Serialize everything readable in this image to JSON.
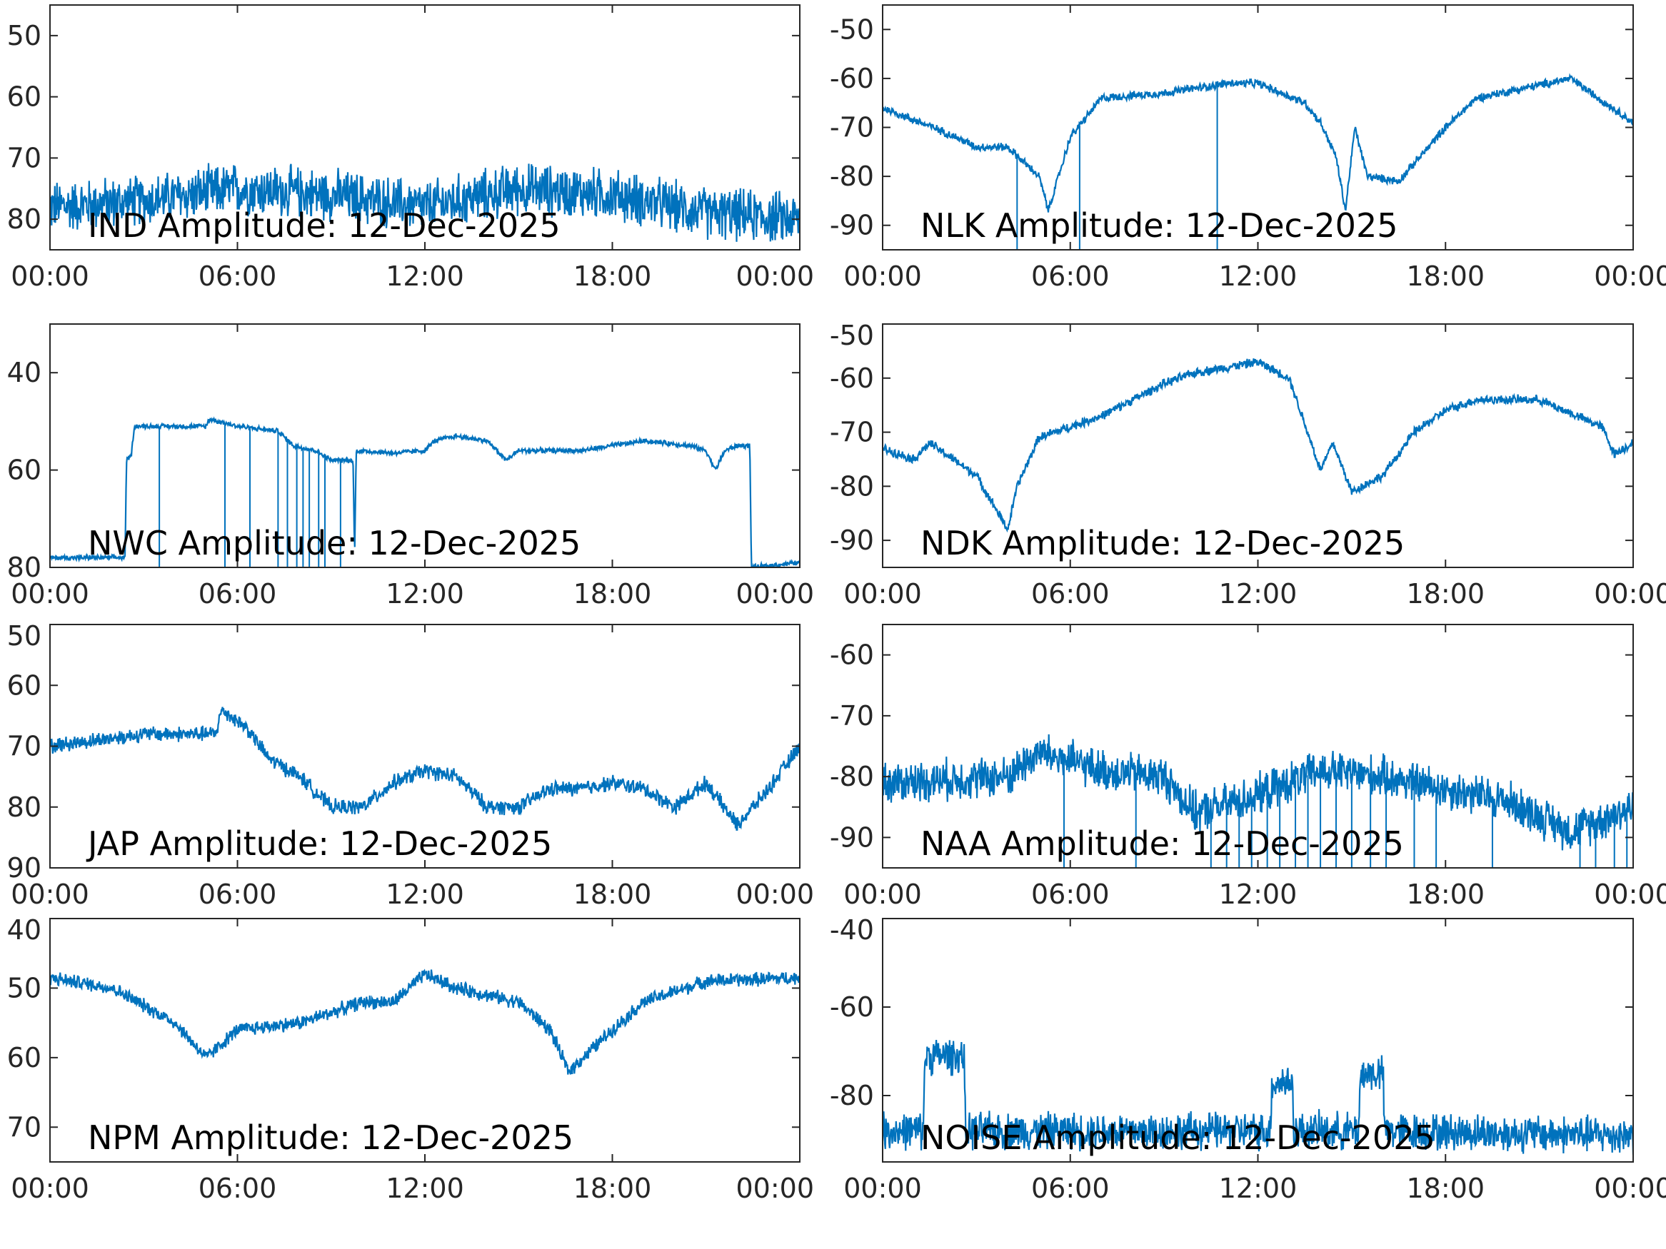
{
  "line_color": "#0072BD",
  "axis_color": "#262626",
  "chart_data": [
    {
      "type": "line",
      "station": "IND",
      "annotation": "IND Amplitude: 12-Dec-2025",
      "ylim": [
        -85,
        -45
      ],
      "yticks": [
        -50,
        -60,
        -70,
        -80
      ],
      "ytick_labels": [
        "50",
        "60",
        "70",
        "80"
      ],
      "xticks": [
        0,
        6,
        12,
        18,
        24
      ],
      "xtick_labels": [
        "00:00",
        "06:00",
        "12:00",
        "18:00",
        "00:00"
      ],
      "noise": 5,
      "points": [
        [
          0,
          -78
        ],
        [
          3,
          -77
        ],
        [
          6,
          -75
        ],
        [
          9,
          -76
        ],
        [
          12,
          -78
        ],
        [
          15,
          -75
        ],
        [
          18,
          -76
        ],
        [
          21,
          -79
        ],
        [
          24,
          -80
        ]
      ],
      "dropouts": []
    },
    {
      "type": "line",
      "station": "NLK",
      "annotation": "NLK Amplitude: 12-Dec-2025",
      "ylim": [
        -95,
        -45
      ],
      "yticks": [
        -50,
        -60,
        -70,
        -80,
        -90
      ],
      "ytick_labels": [
        "-50",
        "-60",
        "-70",
        "-80",
        "-90"
      ],
      "xticks": [
        0,
        6,
        12,
        18,
        24
      ],
      "xtick_labels": [
        "00:00",
        "06:00",
        "12:00",
        "18:00",
        "00:00"
      ],
      "noise": 1,
      "points": [
        [
          0,
          -66
        ],
        [
          2,
          -71
        ],
        [
          3,
          -74
        ],
        [
          4,
          -74
        ],
        [
          5,
          -80
        ],
        [
          5.3,
          -87
        ],
        [
          6,
          -72
        ],
        [
          7,
          -64
        ],
        [
          9,
          -63
        ],
        [
          11,
          -61
        ],
        [
          12,
          -61
        ],
        [
          13.5,
          -65
        ],
        [
          14,
          -69
        ],
        [
          14.5,
          -76
        ],
        [
          14.8,
          -87
        ],
        [
          15.1,
          -70
        ],
        [
          15.5,
          -80
        ],
        [
          16.5,
          -81
        ],
        [
          18,
          -70
        ],
        [
          19,
          -64
        ],
        [
          22,
          -60
        ],
        [
          24,
          -69
        ]
      ],
      "dropouts": [
        4.3,
        6.3,
        10.7
      ]
    },
    {
      "type": "line",
      "station": "NWC",
      "annotation": "NWC Amplitude: 12-Dec-2025",
      "ylim": [
        -80,
        -30
      ],
      "yticks": [
        -40,
        -60,
        -80
      ],
      "ytick_labels": [
        "40",
        "60",
        "80"
      ],
      "xticks": [
        0,
        6,
        12,
        18,
        24
      ],
      "xtick_labels": [
        "00:00",
        "06:00",
        "12:00",
        "18:00",
        "00:00"
      ],
      "noise": 0.6,
      "points": [
        [
          0,
          -78
        ],
        [
          2.4,
          -78
        ],
        [
          2.45,
          -58
        ],
        [
          2.6,
          -57
        ],
        [
          2.7,
          -51
        ],
        [
          5,
          -51
        ],
        [
          5.1,
          -49.5
        ],
        [
          6,
          -51
        ],
        [
          7.3,
          -52
        ],
        [
          7.8,
          -55
        ],
        [
          8.5,
          -56
        ],
        [
          9,
          -58
        ],
        [
          9.7,
          -58
        ],
        [
          9.75,
          -78
        ],
        [
          9.8,
          -56
        ],
        [
          11,
          -56.5
        ],
        [
          12,
          -56
        ],
        [
          12.3,
          -54
        ],
        [
          13,
          -53
        ],
        [
          14,
          -54
        ],
        [
          14.6,
          -58
        ],
        [
          15,
          -56
        ],
        [
          17,
          -56
        ],
        [
          18,
          -55
        ],
        [
          19,
          -54
        ],
        [
          20.5,
          -55
        ],
        [
          21,
          -56
        ],
        [
          21.3,
          -60
        ],
        [
          21.6,
          -56
        ],
        [
          22,
          -55
        ],
        [
          22.4,
          -55
        ],
        [
          22.45,
          -80
        ],
        [
          24,
          -79
        ]
      ],
      "dropouts": [
        3.5,
        5.6,
        6.4,
        7.3,
        7.6,
        7.9,
        8.1,
        8.3,
        8.6,
        8.8,
        9.3
      ]
    },
    {
      "type": "line",
      "station": "NDK",
      "annotation": "NDK Amplitude: 12-Dec-2025",
      "ylim": [
        -95,
        -50
      ],
      "yticks": [
        -50,
        -60,
        -70,
        -80,
        -90
      ],
      "ytick_labels": [
        "-50",
        "-60",
        "-70",
        "-80",
        "-90"
      ],
      "xticks": [
        0,
        6,
        12,
        18,
        24
      ],
      "xtick_labels": [
        "00:00",
        "06:00",
        "12:00",
        "18:00",
        "00:00"
      ],
      "noise": 1,
      "points": [
        [
          0,
          -73
        ],
        [
          1,
          -75
        ],
        [
          1.5,
          -72
        ],
        [
          3,
          -78
        ],
        [
          4,
          -88
        ],
        [
          4.3,
          -80
        ],
        [
          5,
          -71
        ],
        [
          6,
          -69
        ],
        [
          7,
          -67
        ],
        [
          8,
          -64
        ],
        [
          9,
          -61
        ],
        [
          10,
          -59
        ],
        [
          11,
          -58
        ],
        [
          12,
          -57
        ],
        [
          13,
          -60
        ],
        [
          14,
          -77
        ],
        [
          14.4,
          -72
        ],
        [
          15,
          -81
        ],
        [
          16,
          -78
        ],
        [
          17,
          -70
        ],
        [
          18,
          -66
        ],
        [
          19,
          -64
        ],
        [
          21,
          -64
        ],
        [
          23,
          -69
        ],
        [
          23.4,
          -74
        ],
        [
          24,
          -72
        ]
      ],
      "dropouts": []
    },
    {
      "type": "line",
      "station": "JAP",
      "annotation": "JAP Amplitude: 12-Dec-2025",
      "ylim": [
        -90,
        -50
      ],
      "yticks": [
        -50,
        -60,
        -70,
        -80,
        -90
      ],
      "ytick_labels": [
        "50",
        "60",
        "70",
        "80",
        "90"
      ],
      "xticks": [
        0,
        6,
        12,
        18,
        24
      ],
      "xtick_labels": [
        "00:00",
        "06:00",
        "12:00",
        "18:00",
        "00:00"
      ],
      "noise": 1.5,
      "points": [
        [
          0,
          -70
        ],
        [
          3,
          -68
        ],
        [
          5.3,
          -68
        ],
        [
          5.5,
          -64
        ],
        [
          6.3,
          -67
        ],
        [
          7,
          -72
        ],
        [
          8,
          -75
        ],
        [
          9,
          -80
        ],
        [
          10,
          -80
        ],
        [
          11,
          -76
        ],
        [
          12,
          -74
        ],
        [
          13,
          -75
        ],
        [
          14,
          -80
        ],
        [
          15,
          -80
        ],
        [
          16,
          -77
        ],
        [
          17,
          -77
        ],
        [
          18,
          -76
        ],
        [
          19,
          -77
        ],
        [
          20,
          -80
        ],
        [
          21,
          -76
        ],
        [
          22,
          -83
        ],
        [
          23,
          -77
        ],
        [
          24,
          -70
        ]
      ],
      "dropouts": []
    },
    {
      "type": "line",
      "station": "NAA",
      "annotation": "NAA Amplitude: 12-Dec-2025",
      "ylim": [
        -95,
        -55
      ],
      "yticks": [
        -60,
        -70,
        -80,
        -90
      ],
      "ytick_labels": [
        "-60",
        "-70",
        "-80",
        "-90"
      ],
      "xticks": [
        0,
        6,
        12,
        18,
        24
      ],
      "xtick_labels": [
        "00:00",
        "06:00",
        "12:00",
        "18:00",
        "00:00"
      ],
      "noise": 4,
      "points": [
        [
          0,
          -81
        ],
        [
          4,
          -80
        ],
        [
          5,
          -76
        ],
        [
          7,
          -79
        ],
        [
          9,
          -80
        ],
        [
          10,
          -86
        ],
        [
          12,
          -83
        ],
        [
          14,
          -79
        ],
        [
          16,
          -80
        ],
        [
          18,
          -82
        ],
        [
          20,
          -84
        ],
        [
          22,
          -89
        ],
        [
          24,
          -85
        ]
      ],
      "dropouts": [
        5.8,
        8.1,
        10.5,
        11.0,
        11.4,
        11.8,
        12.3,
        12.7,
        13.2,
        13.6,
        14.0,
        14.5,
        15.0,
        15.6,
        16.1,
        17.0,
        17.7,
        19.5,
        22.3,
        22.8,
        23.4,
        23.8
      ]
    },
    {
      "type": "line",
      "station": "NPM",
      "annotation": "NPM Amplitude: 12-Dec-2025",
      "ylim": [
        -75,
        -40
      ],
      "yticks": [
        -40,
        -50,
        -60,
        -70
      ],
      "ytick_labels": [
        "40",
        "50",
        "60",
        "70"
      ],
      "xticks": [
        0,
        6,
        12,
        18,
        24
      ],
      "xtick_labels": [
        "00:00",
        "06:00",
        "12:00",
        "18:00",
        "00:00"
      ],
      "noise": 1.2,
      "points": [
        [
          0,
          -48.5
        ],
        [
          2,
          -50
        ],
        [
          4,
          -55
        ],
        [
          5,
          -60
        ],
        [
          5.5,
          -58
        ],
        [
          6,
          -56
        ],
        [
          8,
          -55
        ],
        [
          10,
          -52
        ],
        [
          11,
          -52
        ],
        [
          12,
          -48
        ],
        [
          13,
          -50
        ],
        [
          15,
          -52
        ],
        [
          16,
          -56
        ],
        [
          16.6,
          -62
        ],
        [
          18,
          -56
        ],
        [
          19,
          -52
        ],
        [
          21,
          -49
        ],
        [
          24,
          -48.5
        ]
      ],
      "dropouts": []
    },
    {
      "type": "line",
      "station": "NOISE",
      "annotation": "NOISE Amplitude: 12-Dec-2025",
      "ylim": [
        -95,
        -40
      ],
      "yticks": [
        -40,
        -60,
        -80
      ],
      "ytick_labels": [
        "-40",
        "-60",
        "-80"
      ],
      "xticks": [
        0,
        6,
        12,
        18,
        24
      ],
      "xtick_labels": [
        "00:00",
        "06:00",
        "12:00",
        "18:00",
        "00:00"
      ],
      "noise": 5,
      "points": [
        [
          0,
          -88
        ],
        [
          1.3,
          -88
        ],
        [
          1.35,
          -71
        ],
        [
          2.6,
          -71
        ],
        [
          2.65,
          -88
        ],
        [
          12.4,
          -88
        ],
        [
          12.45,
          -77
        ],
        [
          13.1,
          -77
        ],
        [
          13.15,
          -88
        ],
        [
          15.2,
          -88
        ],
        [
          15.3,
          -75
        ],
        [
          16,
          -75
        ],
        [
          16.05,
          -88
        ],
        [
          24,
          -89
        ]
      ],
      "dropouts": []
    }
  ]
}
